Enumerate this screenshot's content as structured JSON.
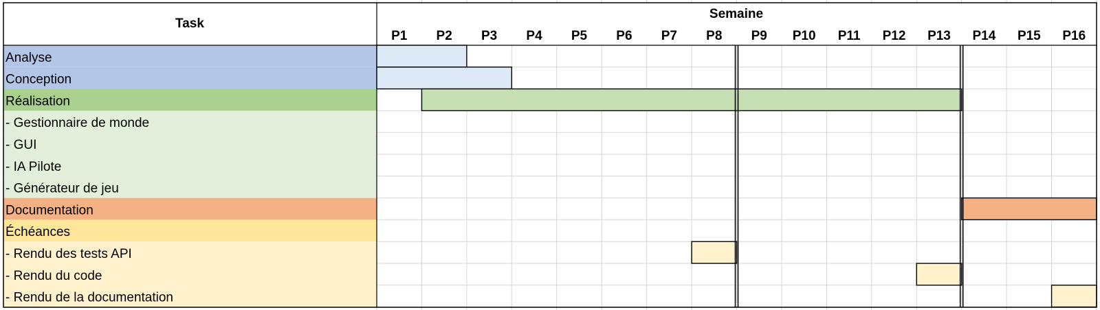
{
  "header": {
    "task_label": "Task",
    "period_group_label": "Semaine"
  },
  "chart_data": {
    "type": "gantt",
    "periods": [
      "P1",
      "P2",
      "P3",
      "P4",
      "P5",
      "P6",
      "P7",
      "P8",
      "P9",
      "P10",
      "P11",
      "P12",
      "P13",
      "P14",
      "P15",
      "P16"
    ],
    "milestone_dividers_after_period": [
      "P8",
      "P13"
    ],
    "tasks": [
      {
        "label": "Analyse",
        "row_color": "#b4c6e7",
        "bar_color": "#dde9f6",
        "start": "P1",
        "end": "P2"
      },
      {
        "label": "Conception",
        "row_color": "#b4c6e7",
        "bar_color": "#dde9f6",
        "start": "P1",
        "end": "P3"
      },
      {
        "label": "Réalisation",
        "row_color": "#a9d08e",
        "bar_color": "#c6e0b4",
        "start": "P2",
        "end": "P13"
      },
      {
        "label": "- Gestionnaire de monde",
        "row_color": "#e2efda",
        "bar_color": null,
        "start": null,
        "end": null
      },
      {
        "label": "- GUI",
        "row_color": "#e2efda",
        "bar_color": null,
        "start": null,
        "end": null
      },
      {
        "label": "- IA Pilote",
        "row_color": "#e2efda",
        "bar_color": null,
        "start": null,
        "end": null
      },
      {
        "label": "- Générateur de jeu",
        "row_color": "#e2efda",
        "bar_color": null,
        "start": null,
        "end": null
      },
      {
        "label": "Documentation",
        "row_color": "#f4b183",
        "bar_color": "#f4b183",
        "start": "P14",
        "end": "P16"
      },
      {
        "label": "Échéances",
        "row_color": "#ffe699",
        "bar_color": null,
        "start": null,
        "end": null
      },
      {
        "label": "- Rendu des tests API",
        "row_color": "#fff2cc",
        "bar_color": "#fff2cc",
        "start": "P8",
        "end": "P8"
      },
      {
        "label": "- Rendu du code",
        "row_color": "#fff2cc",
        "bar_color": "#fff2cc",
        "start": "P13",
        "end": "P13"
      },
      {
        "label": "- Rendu de la documentation",
        "row_color": "#fff2cc",
        "bar_color": "#fff2cc",
        "start": "P16",
        "end": "P16"
      }
    ],
    "grid": true
  }
}
